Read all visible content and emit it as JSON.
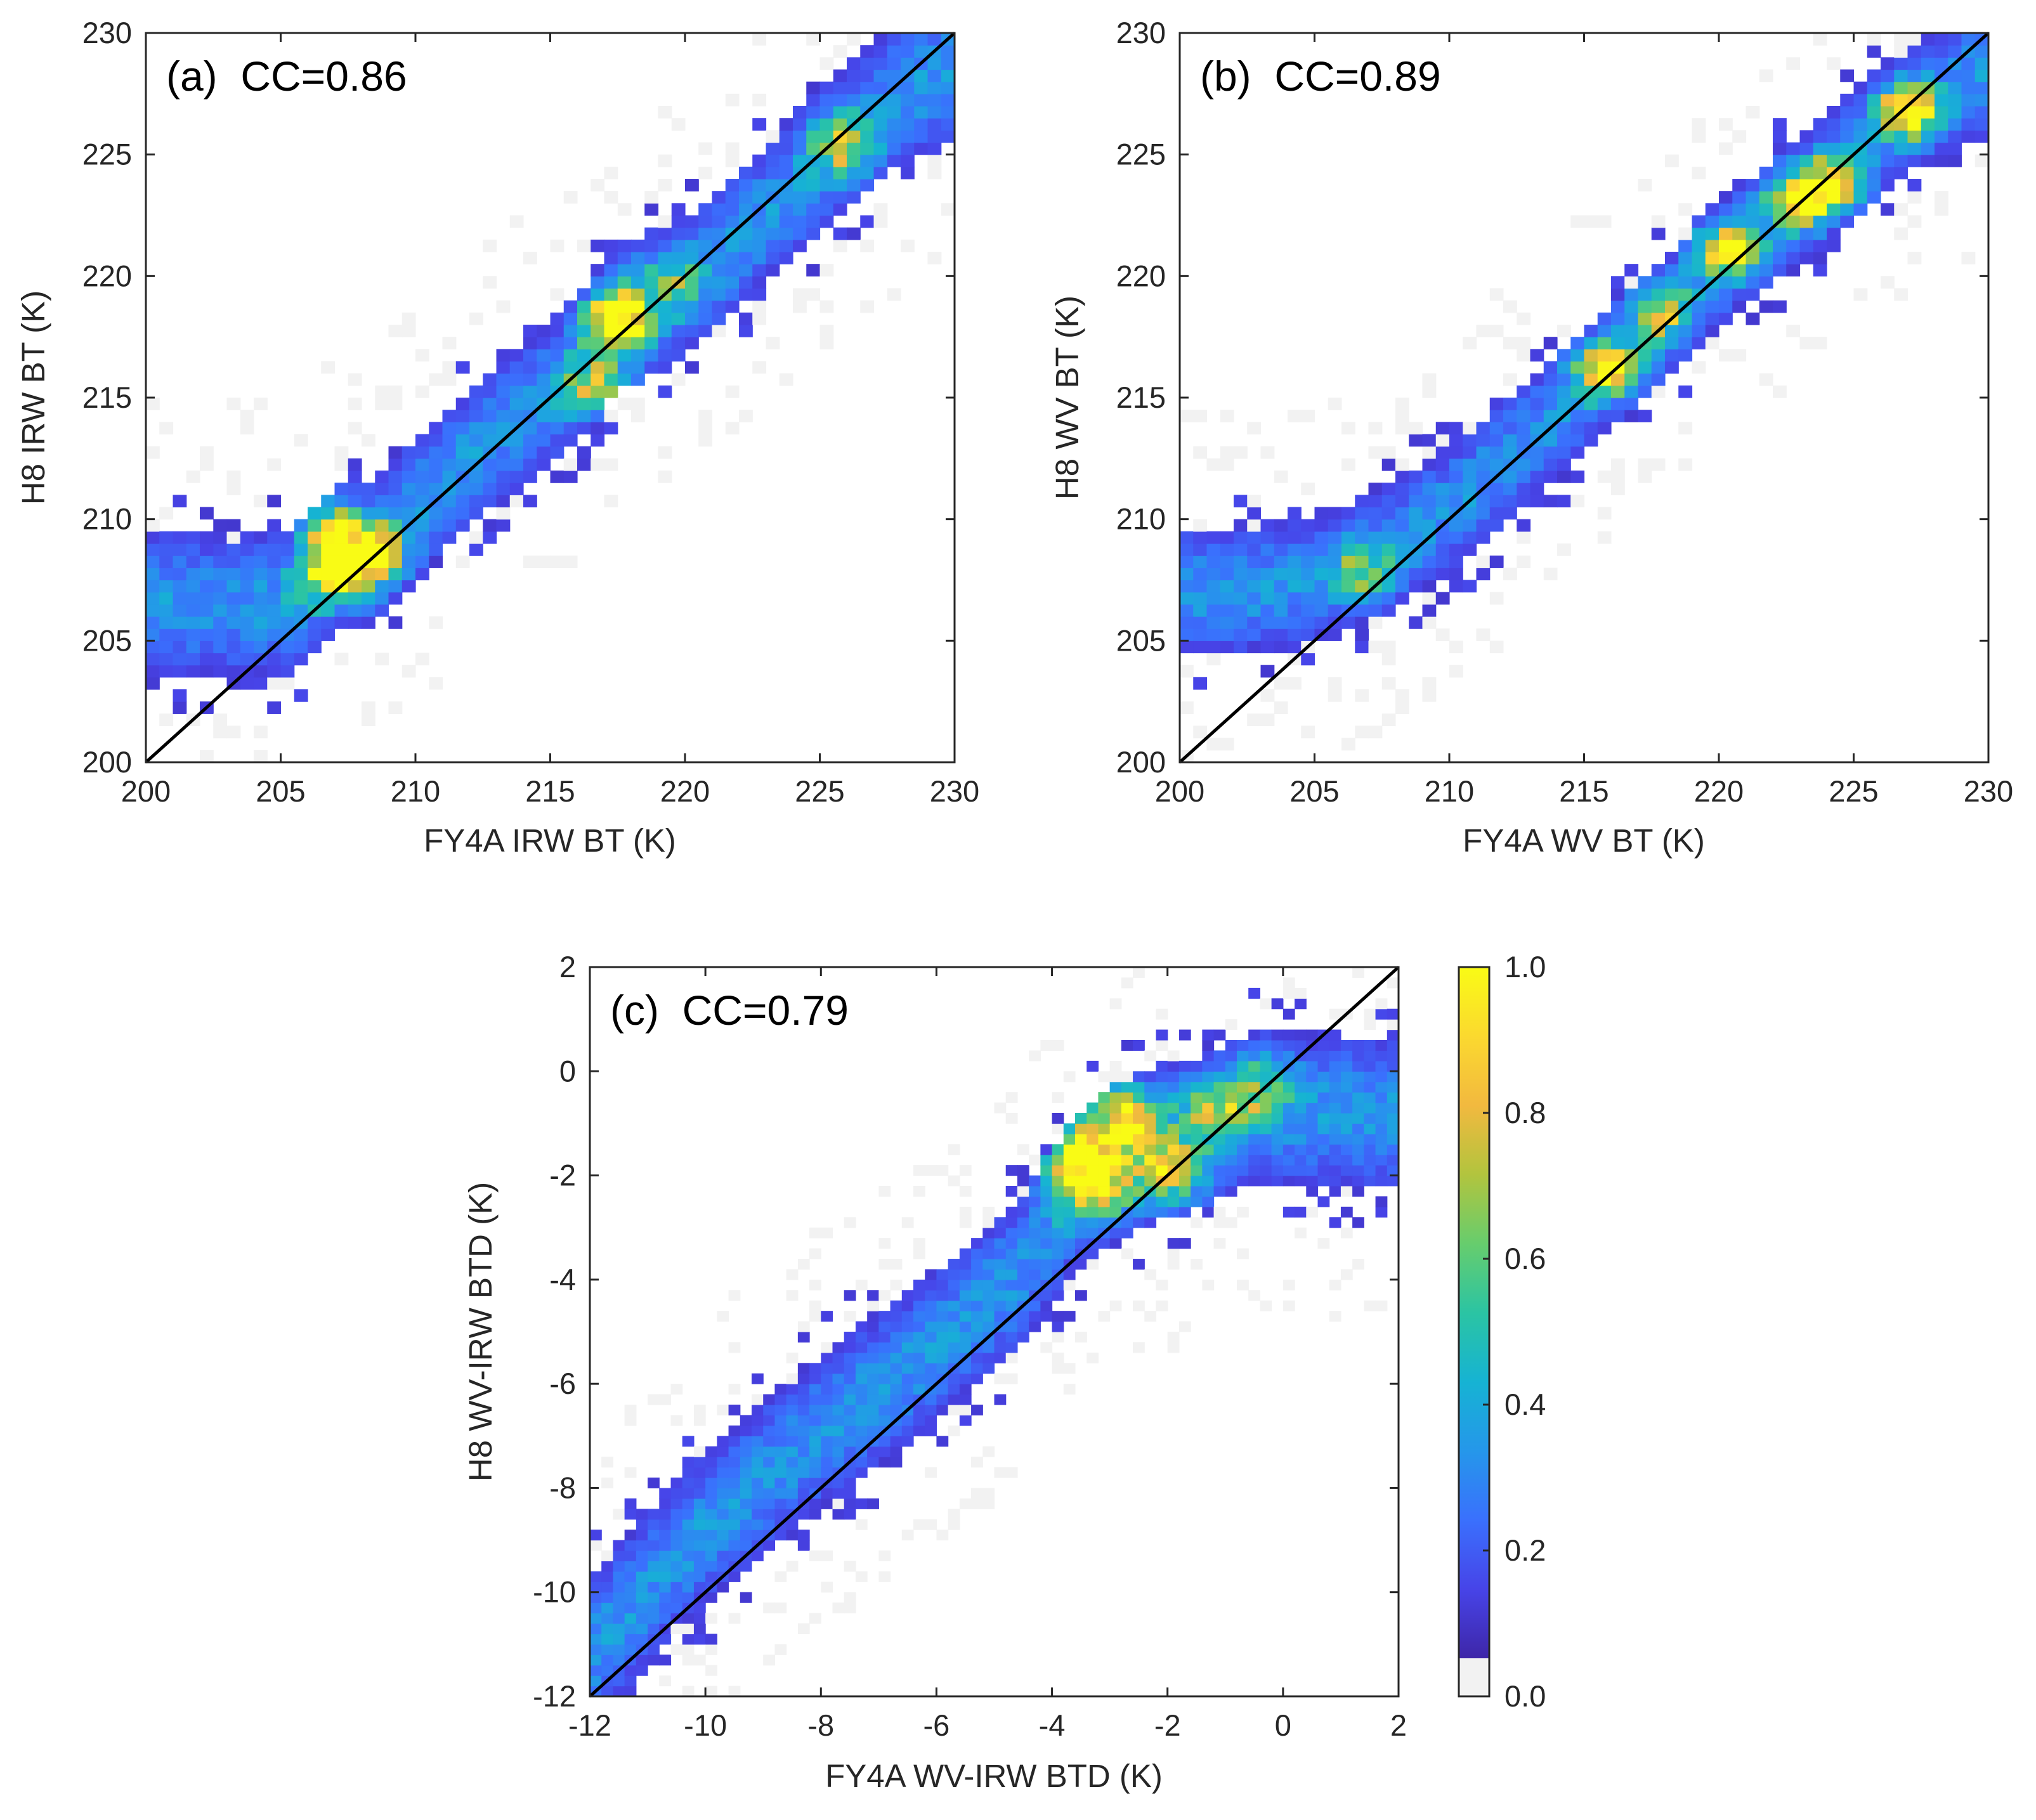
{
  "chart_data": [
    {
      "type": "heatmap",
      "panel": "(a)",
      "annotation": "(a)  CC=0.86",
      "correlation": 0.86,
      "xlabel": "FY4A IRW BT (K)",
      "ylabel": "H8 IRW BT (K)",
      "xlim": [
        200,
        230
      ],
      "ylim": [
        200,
        230
      ],
      "xticks": [
        "200",
        "205",
        "210",
        "215",
        "220",
        "225",
        "230"
      ],
      "yticks": [
        "200",
        "205",
        "210",
        "215",
        "220",
        "225",
        "230"
      ],
      "xtick_values": [
        200,
        205,
        210,
        215,
        220,
        225,
        230
      ],
      "ytick_values": [
        200,
        205,
        210,
        215,
        220,
        225,
        230
      ],
      "reference_line": "1:1",
      "bin_size": 0.5,
      "density_ridge": {
        "x": [
          205.5,
          207,
          208.3,
          210,
          213,
          215.5,
          217.5,
          220,
          223,
          225.8,
          228,
          230
        ],
        "y": [
          206.5,
          208.5,
          208.6,
          210.5,
          213.5,
          215.5,
          218.2,
          219.5,
          222.5,
          225.4,
          227.5,
          228.5
        ]
      },
      "band_halfwidth": 2.6,
      "hotspots": [
        {
          "x": 217.5,
          "y": 218.2,
          "value": 0.95
        },
        {
          "x": 208.3,
          "y": 208.6,
          "value": 0.9
        },
        {
          "x": 207,
          "y": 209.4,
          "value": 0.55
        },
        {
          "x": 216.7,
          "y": 215.4,
          "value": 0.55
        },
        {
          "x": 225.8,
          "y": 225.4,
          "value": 0.5
        },
        {
          "x": 206.8,
          "y": 207.6,
          "value": 0.6
        },
        {
          "x": 219.5,
          "y": 219.8,
          "value": 0.35
        }
      ],
      "seed": 11
    },
    {
      "type": "heatmap",
      "panel": "(b)",
      "annotation": "(b)  CC=0.89",
      "correlation": 0.89,
      "xlabel": "FY4A WV BT (K)",
      "ylabel": "H8 WV BT (K)",
      "xlim": [
        200,
        230
      ],
      "ylim": [
        200,
        230
      ],
      "xticks": [
        "200",
        "205",
        "210",
        "215",
        "220",
        "225",
        "230"
      ],
      "yticks": [
        "200",
        "205",
        "210",
        "215",
        "220",
        "225",
        "230"
      ],
      "xtick_values": [
        200,
        205,
        210,
        215,
        220,
        225,
        230
      ],
      "ytick_values": [
        200,
        205,
        210,
        215,
        220,
        225,
        230
      ],
      "reference_line": "1:1",
      "bin_size": 0.5,
      "density_ridge": {
        "x": [
          202,
          205,
          208,
          211,
          213.5,
          216,
          218.5,
          220.5,
          223,
          225,
          227,
          230
        ],
        "y": [
          207,
          207.5,
          208.8,
          211.3,
          213.8,
          216.2,
          218.8,
          221,
          223,
          225,
          226.8,
          228.5
        ]
      },
      "band_halfwidth": 2.3,
      "hotspots": [
        {
          "x": 215.8,
          "y": 216.2,
          "value": 0.85
        },
        {
          "x": 223,
          "y": 223.2,
          "value": 0.85
        },
        {
          "x": 227,
          "y": 226.8,
          "value": 0.85
        },
        {
          "x": 220.3,
          "y": 221.1,
          "value": 0.75
        },
        {
          "x": 224.2,
          "y": 223.8,
          "value": 0.7
        },
        {
          "x": 217.8,
          "y": 218.5,
          "value": 0.5
        },
        {
          "x": 206.8,
          "y": 207.8,
          "value": 0.4
        }
      ],
      "seed": 23
    },
    {
      "type": "heatmap",
      "panel": "(c)",
      "annotation": "(c)  CC=0.79",
      "correlation": 0.79,
      "xlabel": "FY4A WV-IRW BTD (K)",
      "ylabel": "H8 WV-IRW BTD (K)",
      "xlim": [
        -12,
        2
      ],
      "ylim": [
        -12,
        2
      ],
      "xticks": [
        "-12",
        "-10",
        "-8",
        "-6",
        "-4",
        "-2",
        "0",
        "2"
      ],
      "yticks": [
        "-12",
        "-10",
        "-8",
        "-6",
        "-4",
        "-2",
        "0",
        "2"
      ],
      "xtick_values": [
        -12,
        -10,
        -8,
        -6,
        -4,
        -2,
        0,
        2
      ],
      "ytick_values": [
        -12,
        -10,
        -8,
        -6,
        -4,
        -2,
        0,
        2
      ],
      "reference_line": "1:1",
      "bin_size": 0.2,
      "density_ridge": {
        "x": [
          -12,
          -10.5,
          -9,
          -7.5,
          -6,
          -4.5,
          -3.5,
          -2.5,
          -1.5,
          -0.5,
          0.8
        ],
        "y": [
          -11.2,
          -9.3,
          -7.8,
          -6.5,
          -5.3,
          -3.8,
          -2.2,
          -1.5,
          -1.2,
          -0.7,
          -0.8
        ]
      },
      "band_halfwidth": 1.3,
      "hotspots": [
        {
          "x": -3.5,
          "y": -1.7,
          "value": 0.85
        },
        {
          "x": -2.8,
          "y": -0.9,
          "value": 0.75
        },
        {
          "x": -2.0,
          "y": -1.9,
          "value": 0.65
        },
        {
          "x": -3.2,
          "y": -2.3,
          "value": 0.5
        },
        {
          "x": -1.2,
          "y": -0.8,
          "value": 0.45
        },
        {
          "x": -0.4,
          "y": -0.3,
          "value": 0.35
        }
      ],
      "seed": 37
    }
  ],
  "colorbar": {
    "label_ticks": [
      "0.0",
      "0.2",
      "0.4",
      "0.6",
      "0.8",
      "1.0"
    ],
    "tick_values": [
      0.0,
      0.2,
      0.4,
      0.6,
      0.8,
      1.0
    ],
    "range": [
      0,
      1
    ],
    "colormap": "parula",
    "colormap_stops": [
      "#3e26a8",
      "#4744e8",
      "#3a70fd",
      "#2597ea",
      "#16b3d3",
      "#2bc4a3",
      "#67cd6d",
      "#b2c43e",
      "#f2b93f",
      "#fbd92f",
      "#f9fb15"
    ],
    "zero_color": "#f2f2f2"
  }
}
